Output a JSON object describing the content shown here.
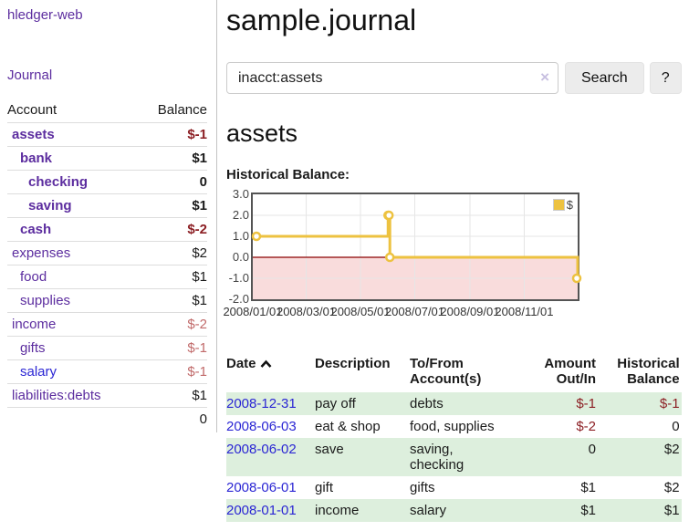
{
  "app": {
    "title": "hledger-web"
  },
  "sidebar": {
    "nav_journal": "Journal",
    "accounts_table": {
      "headers": {
        "account": "Account",
        "balance": "Balance"
      },
      "rows": [
        {
          "name": "assets",
          "indent": 1,
          "balance": "$-1",
          "bold": true,
          "balance_style": "neg-strong",
          "link_style": ""
        },
        {
          "name": "bank",
          "indent": 2,
          "balance": "$1",
          "bold": true,
          "balance_style": "",
          "link_style": ""
        },
        {
          "name": "checking",
          "indent": 3,
          "balance": "0",
          "bold": true,
          "balance_style": "",
          "link_style": ""
        },
        {
          "name": "saving",
          "indent": 3,
          "balance": "$1",
          "bold": true,
          "balance_style": "",
          "link_style": ""
        },
        {
          "name": "cash",
          "indent": 2,
          "balance": "$-2",
          "bold": true,
          "balance_style": "neg-strong",
          "link_style": ""
        },
        {
          "name": "expenses",
          "indent": 1,
          "balance": "$2",
          "bold": false,
          "balance_style": "",
          "link_style": ""
        },
        {
          "name": "food",
          "indent": 2,
          "balance": "$1",
          "bold": false,
          "balance_style": "",
          "link_style": ""
        },
        {
          "name": "supplies",
          "indent": 2,
          "balance": "$1",
          "bold": false,
          "balance_style": "",
          "link_style": ""
        },
        {
          "name": "income",
          "indent": 1,
          "balance": "$-2",
          "bold": false,
          "balance_style": "neg-soft",
          "link_style": ""
        },
        {
          "name": "gifts",
          "indent": 2,
          "balance": "$-1",
          "bold": false,
          "balance_style": "neg-soft",
          "link_style": ""
        },
        {
          "name": "salary",
          "indent": 2,
          "balance": "$-1",
          "bold": false,
          "balance_style": "neg-soft",
          "link_style": "blue"
        },
        {
          "name": "liabilities:debts",
          "indent": 1,
          "balance": "$1",
          "bold": false,
          "balance_style": "",
          "link_style": ""
        }
      ],
      "total": "0"
    }
  },
  "main": {
    "title": "sample.journal",
    "account_heading": "assets",
    "chart_title": "Historical Balance:"
  },
  "search": {
    "value": "inacct:assets",
    "clear_icon": "×",
    "search_label": "Search",
    "help_label": "?"
  },
  "chart_data": {
    "type": "line",
    "step": true,
    "title": "Historical Balance:",
    "series": [
      {
        "name": "$",
        "color": "#edc240",
        "points": [
          {
            "date": "2008-01-01",
            "value": 1
          },
          {
            "date": "2008-06-01",
            "value": 2
          },
          {
            "date": "2008-06-02",
            "value": 2
          },
          {
            "date": "2008-06-03",
            "value": 0
          },
          {
            "date": "2008-12-31",
            "value": -1
          }
        ]
      }
    ],
    "x_range": [
      "2008-01-01",
      "2008-12-31"
    ],
    "x_ticks": [
      "2008/01/01",
      "2008/03/01",
      "2008/05/01",
      "2008/07/01",
      "2008/09/01",
      "2008/11/01"
    ],
    "y_ticks": [
      "3.0",
      "2.0",
      "1.0",
      "0.0",
      "-1.0",
      "-2.0"
    ],
    "ylim": [
      -2,
      3
    ],
    "grid": true,
    "grid_color": "#e6e6e6",
    "border_color": "#545454",
    "zero_line_color": "#8b0000",
    "negative_region_color": "#f9dcdc",
    "marker_fill": "#ffffff",
    "legend": {
      "label": "$",
      "position": "top-right"
    }
  },
  "register": {
    "headers": {
      "date": "Date",
      "description": "Description",
      "accounts": "To/From\nAccount(s)",
      "amount": "Amount\nOut/In",
      "balance": "Historical\nBalance"
    },
    "rows": [
      {
        "date": "2008-12-31",
        "description": "pay off",
        "accounts": "debts",
        "amount": "$-1",
        "amount_style": "neg-strong",
        "balance": "$-1",
        "balance_style": "neg-strong"
      },
      {
        "date": "2008-06-03",
        "description": "eat & shop",
        "accounts": "food, supplies",
        "amount": "$-2",
        "amount_style": "neg-strong",
        "balance": "0",
        "balance_style": ""
      },
      {
        "date": "2008-06-02",
        "description": "save",
        "accounts": "saving,\nchecking",
        "amount": "0",
        "amount_style": "",
        "balance": "$2",
        "balance_style": ""
      },
      {
        "date": "2008-06-01",
        "description": "gift",
        "accounts": "gifts",
        "amount": "$1",
        "amount_style": "",
        "balance": "$2",
        "balance_style": ""
      },
      {
        "date": "2008-01-01",
        "description": "income",
        "accounts": "salary",
        "amount": "$1",
        "amount_style": "",
        "balance": "$1",
        "balance_style": ""
      }
    ]
  }
}
